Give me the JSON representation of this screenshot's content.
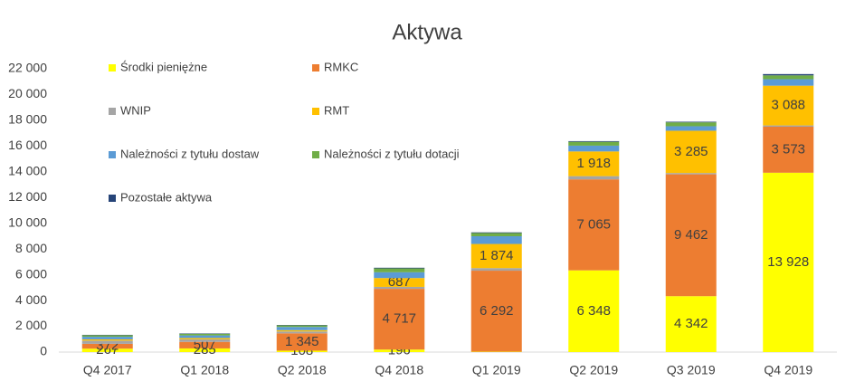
{
  "chart_data": {
    "type": "stacked_bar",
    "title": "Aktywa",
    "categories": [
      "Q4 2017",
      "Q1 2018",
      "Q2 2018",
      "Q4 2018",
      "Q1 2019",
      "Q2 2019",
      "Q3 2019",
      "Q4 2019"
    ],
    "series": [
      {
        "name": "Środki pieniężne",
        "color": "#ffff00",
        "values": [
          267,
          285,
          108,
          196,
          30,
          6348,
          4342,
          13928
        ],
        "value_labels": [
          "267",
          "285",
          "108",
          "196",
          null,
          "6 348",
          "4 342",
          "13 928"
        ]
      },
      {
        "name": "RMKC",
        "color": "#ed7d31",
        "values": [
          372,
          507,
          1345,
          4717,
          6292,
          7065,
          9462,
          3573
        ],
        "value_labels": [
          "372",
          "507",
          "1 345",
          "4 717",
          "6 292",
          "7 065",
          "9 462",
          "3 573"
        ]
      },
      {
        "name": "WNIP",
        "color": "#a5a5a5",
        "values": [
          250,
          200,
          150,
          150,
          200,
          250,
          100,
          100
        ]
      },
      {
        "name": "RMT",
        "color": "#ffc000",
        "values": [
          100,
          100,
          100,
          687,
          1874,
          1918,
          3285,
          3088
        ],
        "value_labels": [
          null,
          null,
          null,
          "687",
          "1 874",
          "1 918",
          "3 285",
          "3 088"
        ]
      },
      {
        "name": "Należności z tytułu dostaw",
        "color": "#5b9bd5",
        "values": [
          200,
          200,
          250,
          450,
          600,
          450,
          350,
          500
        ]
      },
      {
        "name": "Należności z tytułu dotacji",
        "color": "#70ad47",
        "values": [
          120,
          130,
          120,
          300,
          250,
          300,
          300,
          300
        ]
      },
      {
        "name": "Pozostałe aktywa",
        "color": "#264478",
        "values": [
          30,
          30,
          30,
          50,
          50,
          50,
          50,
          100
        ]
      }
    ],
    "ylim": [
      0,
      22000
    ],
    "yticks": [
      0,
      {
        "value": 2000,
        "label": "2 000"
      },
      {
        "value": 4000,
        "label": "4 000"
      },
      {
        "value": 6000,
        "label": "6 000"
      },
      {
        "value": 8000,
        "label": "8 000"
      },
      {
        "value": 10000,
        "label": "10 000"
      },
      {
        "value": 12000,
        "label": "12 000"
      },
      {
        "value": 14000,
        "label": "14 000"
      },
      {
        "value": 16000,
        "label": "16 000"
      },
      {
        "value": 18000,
        "label": "18 000"
      },
      {
        "value": 20000,
        "label": "20 000"
      },
      {
        "value": 22000,
        "label": "22 000"
      }
    ],
    "grid": false
  }
}
